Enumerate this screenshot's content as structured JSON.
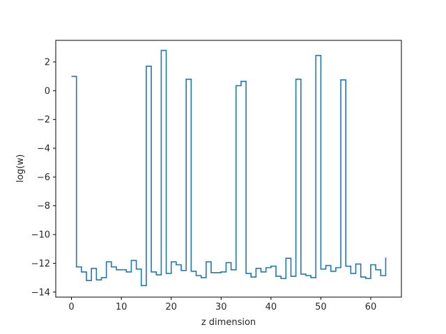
{
  "chart_data": {
    "type": "line",
    "drawstyle": "steps-post",
    "xlabel": "z dimension",
    "ylabel": "log(w)",
    "xlim": [
      -3.15,
      66.15
    ],
    "ylim": [
      -14.35,
      3.5
    ],
    "xticks": [
      0,
      10,
      20,
      30,
      40,
      50,
      60
    ],
    "yticks": [
      2,
      0,
      -2,
      -4,
      -6,
      -8,
      -10,
      -12,
      -14
    ],
    "ytick_labels": [
      "2",
      "0",
      "−2",
      "−4",
      "−6",
      "−8",
      "−10",
      "−12",
      "−14"
    ],
    "grid": false,
    "color": "#1f77b4",
    "series": [
      {
        "x": [
          0,
          1,
          2,
          3,
          4,
          5,
          6,
          7,
          8,
          9,
          10,
          11,
          12,
          13,
          14,
          15,
          16,
          17,
          18,
          19,
          20,
          21,
          22,
          23,
          24,
          25,
          26,
          27,
          28,
          29,
          30,
          31,
          32,
          33,
          34,
          35,
          36,
          37,
          38,
          39,
          40,
          41,
          42,
          43,
          44,
          45,
          46,
          47,
          48,
          49,
          50,
          51,
          52,
          53,
          54,
          55,
          56,
          57,
          58,
          59,
          60,
          61,
          62,
          63
        ],
        "values": [
          1.0,
          -12.25,
          -12.6,
          -13.2,
          -12.35,
          -13.15,
          -13.0,
          -11.9,
          -12.25,
          -12.45,
          -12.45,
          -12.6,
          -11.8,
          -12.4,
          -13.55,
          1.7,
          -12.6,
          -12.8,
          2.8,
          -12.7,
          -11.9,
          -12.1,
          -12.5,
          0.8,
          -12.55,
          -12.85,
          -13.0,
          -11.9,
          -12.65,
          -12.65,
          -12.6,
          -11.95,
          -12.45,
          0.35,
          0.65,
          -12.7,
          -12.95,
          -12.35,
          -12.6,
          -12.3,
          -12.2,
          -12.9,
          -13.05,
          -11.65,
          -12.9,
          0.8,
          -12.75,
          -12.85,
          -13.0,
          2.45,
          -12.4,
          -12.15,
          -12.55,
          -12.3,
          0.75,
          -12.2,
          -12.7,
          -12.05,
          -12.95,
          -13.05,
          -12.1,
          -12.45,
          -12.85,
          -11.6
        ]
      }
    ]
  }
}
